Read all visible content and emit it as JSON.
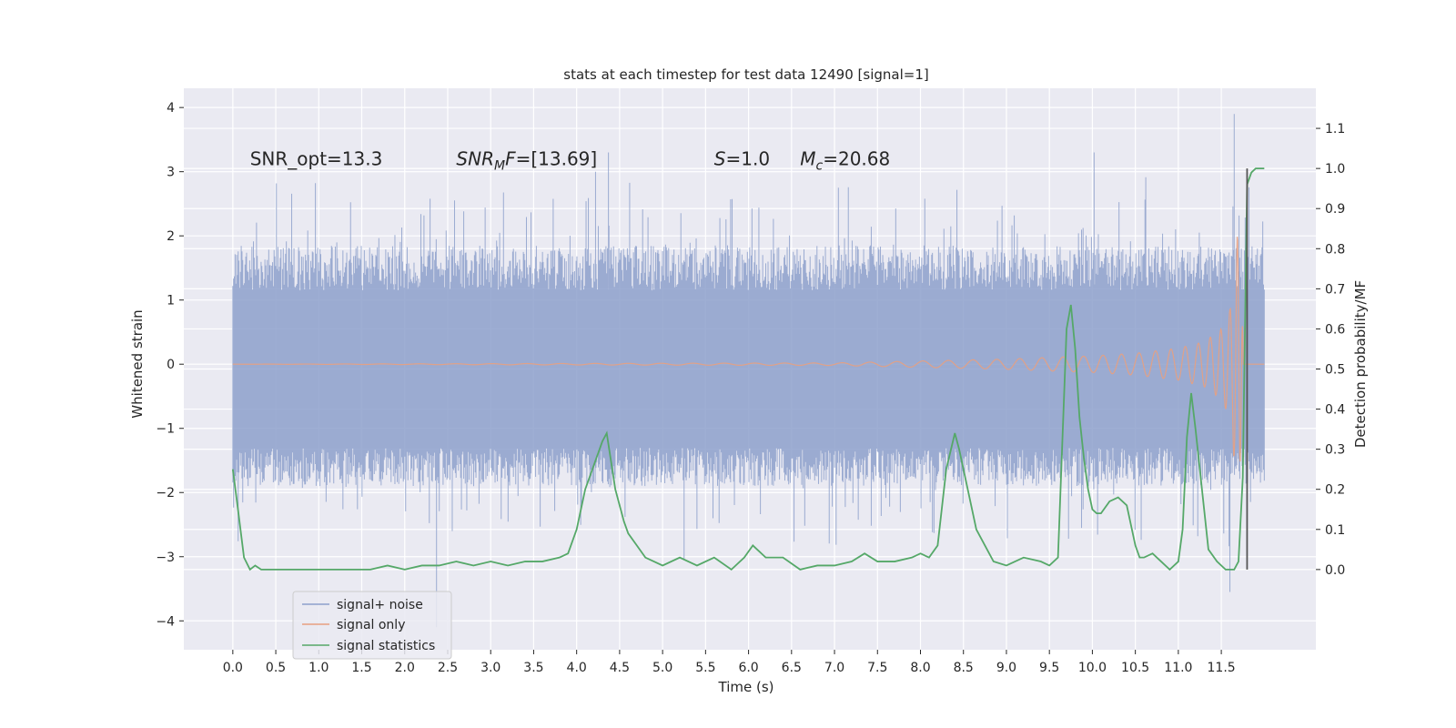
{
  "chart_data": {
    "type": "line",
    "title": "stats at each timestep for test data 12490 [signal=1]",
    "xlabel": "Time (s)",
    "ylabel": "Whitened strain",
    "ylabel_right": "Detection probability/MF",
    "xlim": [
      -0.57,
      12.6
    ],
    "ylim": [
      -4.45,
      4.3
    ],
    "ylim_right": [
      -0.2,
      1.2
    ],
    "x_ticks": [
      0.0,
      0.5,
      1.0,
      1.5,
      2.0,
      2.5,
      3.0,
      3.5,
      4.0,
      4.5,
      5.0,
      5.5,
      6.0,
      6.5,
      7.0,
      7.5,
      8.0,
      8.5,
      9.0,
      9.5,
      10.0,
      10.5,
      11.0,
      11.5
    ],
    "x_tick_labels": [
      "0.0",
      "0.5",
      "1.0",
      "1.5",
      "2.0",
      "2.5",
      "3.0",
      "3.5",
      "4.0",
      "4.5",
      "5.0",
      "5.5",
      "6.0",
      "6.5",
      "7.0",
      "7.5",
      "8.0",
      "8.5",
      "9.0",
      "9.5",
      "10.0",
      "10.5",
      "11.0",
      "11.5"
    ],
    "y_ticks": [
      -4,
      -3,
      -2,
      -1,
      0,
      1,
      2,
      3,
      4
    ],
    "y_tick_labels": [
      "−4",
      "−3",
      "−2",
      "−1",
      "0",
      "1",
      "2",
      "3",
      "4"
    ],
    "y_right_ticks": [
      0.0,
      0.1,
      0.2,
      0.3,
      0.4,
      0.5,
      0.6,
      0.7,
      0.8,
      0.9,
      1.0,
      1.1
    ],
    "y_right_tick_labels": [
      "0.0",
      "0.1",
      "0.2",
      "0.3",
      "0.4",
      "0.5",
      "0.6",
      "0.7",
      "0.8",
      "0.9",
      "1.0",
      "1.1"
    ],
    "grid": true,
    "legend_position": "lower-left",
    "annotations": [
      {
        "id": "snr_opt",
        "text": "SNR_opt=13.3",
        "x": 0.2,
        "y": 3.1
      },
      {
        "id": "snr_mf",
        "text": "SNR_MF=[13.69]",
        "x": 2.6,
        "y": 3.1
      },
      {
        "id": "s",
        "text": "S=1.0",
        "x": 5.6,
        "y": 3.1
      },
      {
        "id": "mc",
        "text": "M_c=20.68",
        "x": 6.6,
        "y": 3.1
      }
    ],
    "vertical_marker": {
      "x": 11.8,
      "y_right": [
        0.0,
        1.0
      ],
      "color": "#555555"
    },
    "series": [
      {
        "name": "signal+ noise",
        "color": "#8da0cb",
        "axis": "left",
        "description_values": {
          "x_range": [
            0.0,
            12.0
          ],
          "typical_band": [
            -1.3,
            1.2
          ],
          "peak_max": 3.9,
          "peak_min": -3.5
        }
      },
      {
        "name": "signal only",
        "color": "#e8a07f",
        "axis": "left",
        "envelope": {
          "x": [
            0.0,
            7.0,
            8.0,
            9.0,
            10.0,
            10.5,
            11.0,
            11.3,
            11.5,
            11.6,
            11.65,
            11.7,
            11.75
          ],
          "amp": [
            0.0,
            0.02,
            0.05,
            0.08,
            0.13,
            0.17,
            0.25,
            0.35,
            0.55,
            0.85,
            1.5,
            2.2,
            0.5
          ]
        }
      },
      {
        "name": "signal statistics",
        "color": "#55a868",
        "axis": "right",
        "x": [
          0.0,
          0.06,
          0.13,
          0.2,
          0.26,
          0.33,
          0.4,
          0.5,
          0.6,
          0.75,
          0.9,
          1.0,
          1.2,
          1.4,
          1.6,
          1.8,
          2.0,
          2.2,
          2.4,
          2.6,
          2.8,
          3.0,
          3.2,
          3.4,
          3.6,
          3.8,
          3.9,
          4.0,
          4.1,
          4.2,
          4.3,
          4.35,
          4.45,
          4.55,
          4.6,
          4.7,
          4.8,
          5.0,
          5.2,
          5.4,
          5.6,
          5.8,
          5.95,
          6.05,
          6.2,
          6.4,
          6.6,
          6.8,
          7.0,
          7.2,
          7.35,
          7.5,
          7.7,
          7.9,
          8.0,
          8.1,
          8.2,
          8.3,
          8.4,
          8.45,
          8.55,
          8.65,
          8.75,
          8.85,
          9.0,
          9.2,
          9.4,
          9.5,
          9.6,
          9.7,
          9.75,
          9.8,
          9.85,
          9.9,
          9.95,
          10.0,
          10.05,
          10.1,
          10.2,
          10.3,
          10.4,
          10.5,
          10.55,
          10.6,
          10.7,
          10.8,
          10.9,
          11.0,
          11.05,
          11.1,
          11.15,
          11.2,
          11.25,
          11.3,
          11.35,
          11.45,
          11.55,
          11.65,
          11.7,
          11.75,
          11.8,
          11.85,
          11.9,
          11.95,
          12.0
        ],
        "y": [
          0.25,
          0.15,
          0.03,
          0.0,
          0.01,
          0.0,
          0.0,
          0.0,
          0.0,
          0.0,
          0.0,
          0.0,
          0.0,
          0.0,
          0.0,
          0.01,
          0.0,
          0.01,
          0.01,
          0.02,
          0.01,
          0.02,
          0.01,
          0.02,
          0.02,
          0.03,
          0.04,
          0.1,
          0.2,
          0.26,
          0.32,
          0.34,
          0.2,
          0.12,
          0.09,
          0.06,
          0.03,
          0.01,
          0.03,
          0.01,
          0.03,
          0.0,
          0.03,
          0.06,
          0.03,
          0.03,
          0.0,
          0.01,
          0.01,
          0.02,
          0.04,
          0.02,
          0.02,
          0.03,
          0.04,
          0.03,
          0.06,
          0.25,
          0.34,
          0.3,
          0.2,
          0.1,
          0.06,
          0.02,
          0.01,
          0.03,
          0.02,
          0.01,
          0.03,
          0.6,
          0.66,
          0.55,
          0.38,
          0.28,
          0.2,
          0.15,
          0.14,
          0.14,
          0.17,
          0.18,
          0.16,
          0.06,
          0.03,
          0.03,
          0.04,
          0.02,
          0.0,
          0.02,
          0.1,
          0.33,
          0.44,
          0.35,
          0.25,
          0.15,
          0.05,
          0.02,
          0.0,
          0.0,
          0.02,
          0.23,
          0.96,
          0.99,
          1.0,
          1.0,
          1.0
        ]
      }
    ]
  }
}
